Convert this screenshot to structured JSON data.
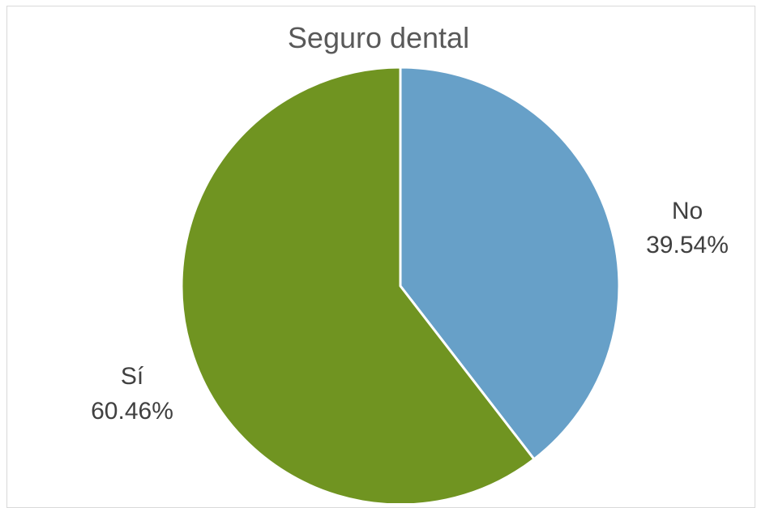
{
  "chart_data": {
    "type": "pie",
    "title": "Seguro dental",
    "slices": [
      {
        "label": "No",
        "value": 39.54,
        "display": "39.54%",
        "color": "#67a0c8"
      },
      {
        "label": "Sí",
        "value": 60.46,
        "display": "60.46%",
        "color": "#709421"
      }
    ],
    "start_angle": "12 o'clock",
    "direction": "clockwise",
    "slice_border_color": "#ffffff",
    "legend": "none",
    "labels": "category and percentage, outside slices"
  }
}
